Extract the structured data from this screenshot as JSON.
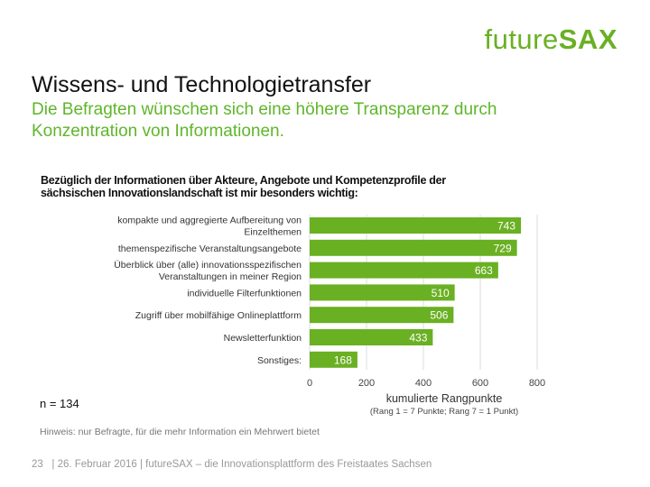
{
  "logo": {
    "prefix": "future",
    "suffix": "SAX"
  },
  "title": "Wissens- und Technologietransfer",
  "subtitle": "Die Befragten wünschen sich eine höhere Transparenz durch Konzentration von Informationen.",
  "question": "Bezüglich der Informationen über Akteure, Angebote und Kompetenzprofile der sächsischen Innovationslandschaft ist mir besonders wichtig:",
  "n_label": "n = 134",
  "hint": "Hinweis: nur Befragte, für die mehr Information ein Mehrwert bietet",
  "footer": {
    "page": "23",
    "text": "| 26. Februar 2016 | futureSAX – die Innovationsplattform  des Freistaates Sachsen"
  },
  "colors": {
    "bar": "#6ab023",
    "accent": "#5fb62a"
  },
  "chart_data": {
    "type": "bar",
    "orientation": "horizontal",
    "categories": [
      [
        "kompakte und aggregierte Aufbereitung von",
        "Einzelthemen"
      ],
      [
        "themenspezifische Veranstaltungsangebote"
      ],
      [
        "Überblick über (alle) innovationsspezifischen",
        "Veranstaltungen in meiner Region"
      ],
      [
        "individuelle Filterfunktionen"
      ],
      [
        "Zugriff über mobilfähige Onlineplattform"
      ],
      [
        "Newsletterfunktion"
      ],
      [
        "Sonstiges:"
      ]
    ],
    "values": [
      743,
      729,
      663,
      510,
      506,
      433,
      168
    ],
    "xlim": [
      0,
      800
    ],
    "xticks": [
      0,
      200,
      400,
      600,
      800
    ],
    "xlabel": "kumulierte Rangpunkte",
    "xlabel_sub": "(Rang 1 = 7 Punkte; Rang 7 = 1 Punkt)",
    "grid": true
  }
}
